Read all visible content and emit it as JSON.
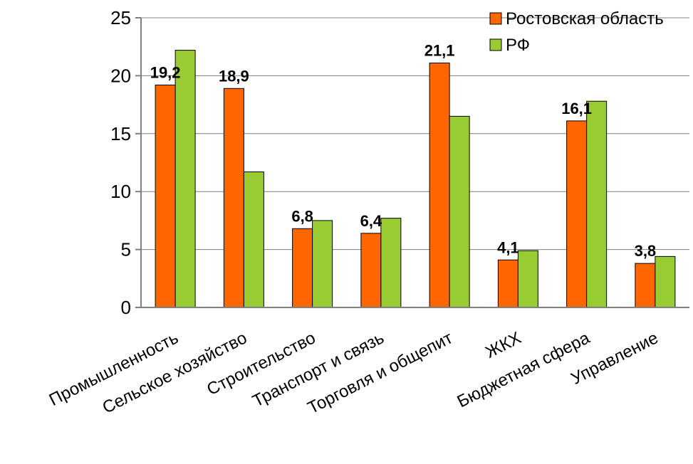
{
  "chart_data": {
    "type": "bar",
    "categories": [
      "Промышленность",
      "Сельское хозяйство",
      "Строительство",
      "Транспорт и связь",
      "Торговля и общепит",
      "ЖКХ",
      "Бюджетная сфера",
      "Управление"
    ],
    "series": [
      {
        "name": "Ростовская область",
        "color": "#FF6600",
        "values": [
          19.2,
          18.9,
          6.8,
          6.4,
          21.1,
          4.1,
          16.1,
          3.8
        ]
      },
      {
        "name": "РФ",
        "color": "#99CC33",
        "values": [
          22.2,
          11.7,
          7.5,
          7.7,
          16.5,
          4.9,
          17.8,
          4.4
        ]
      }
    ],
    "data_labels": [
      "19,2",
      "18,9",
      "6,8",
      "6,4",
      "21,1",
      "4,1",
      "16,1",
      "3,8"
    ],
    "y_ticks": [
      "0",
      "5",
      "10",
      "15",
      "20",
      "25"
    ],
    "ylim": [
      0,
      25
    ],
    "grid": true,
    "legend_position": "top-right"
  }
}
